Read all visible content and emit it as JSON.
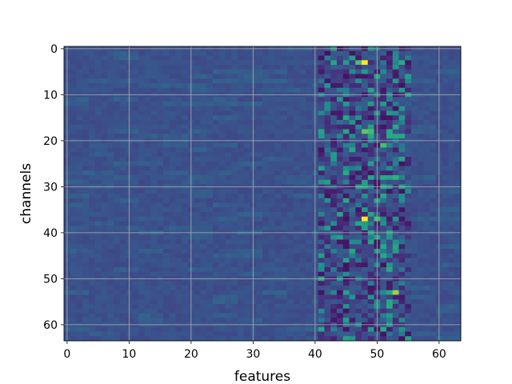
{
  "chart_data": {
    "type": "heatmap",
    "title": "",
    "xlabel": "features",
    "ylabel": "channels",
    "xlim": [
      -0.5,
      63.5
    ],
    "ylim": [
      63.5,
      -0.5
    ],
    "y_axis_inverted": true,
    "x_ticks": [
      0,
      10,
      20,
      30,
      40,
      50,
      60
    ],
    "y_ticks": [
      0,
      10,
      20,
      30,
      40,
      50,
      60
    ],
    "grid": true,
    "colormap": "viridis",
    "rows": 64,
    "cols": 64,
    "background_value": 0.25,
    "active_band_columns": [
      41,
      55
    ],
    "notable_cells": [
      {
        "row": 3,
        "col": 48,
        "value": 1.0
      },
      {
        "row": 3,
        "col": 47,
        "value": 0.7
      },
      {
        "row": 5,
        "col": 48,
        "value": 0.55
      },
      {
        "row": 12,
        "col": 51,
        "value": 0.55
      },
      {
        "row": 18,
        "col": 48,
        "value": 0.75
      },
      {
        "row": 18,
        "col": 49,
        "value": 0.7
      },
      {
        "row": 21,
        "col": 51,
        "value": 0.7
      },
      {
        "row": 28,
        "col": 49,
        "value": 0.6
      },
      {
        "row": 28,
        "col": 53,
        "value": 0.65
      },
      {
        "row": 33,
        "col": 50,
        "value": 0.6
      },
      {
        "row": 37,
        "col": 48,
        "value": 1.0
      },
      {
        "row": 37,
        "col": 50,
        "value": 0.7
      },
      {
        "row": 38,
        "col": 47,
        "value": 0.6
      },
      {
        "row": 44,
        "col": 46,
        "value": 0.6
      },
      {
        "row": 44,
        "col": 50,
        "value": 0.55
      },
      {
        "row": 49,
        "col": 45,
        "value": 0.5
      },
      {
        "row": 53,
        "col": 53,
        "value": 0.85
      },
      {
        "row": 53,
        "col": 52,
        "value": 0.6
      },
      {
        "row": 55,
        "col": 52,
        "value": 0.6
      },
      {
        "row": 58,
        "col": 52,
        "value": 0.55
      },
      {
        "row": 61,
        "col": 49,
        "value": 0.55
      }
    ]
  }
}
